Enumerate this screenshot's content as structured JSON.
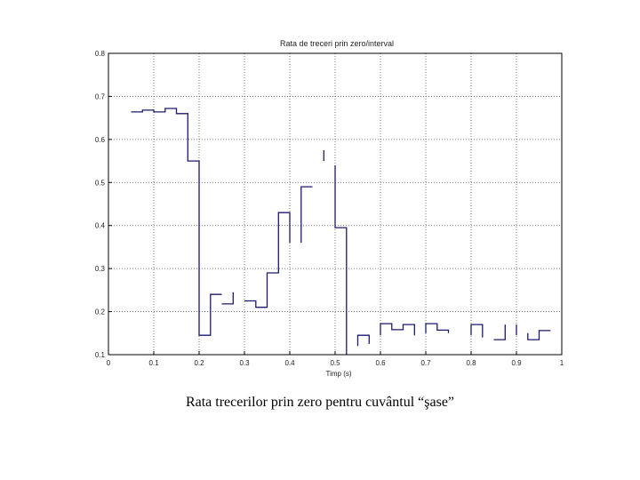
{
  "caption": "Rata trecerilor prin zero pentru cuvântul “şase”",
  "chart_data": {
    "type": "line",
    "title": "Rata de treceri prin zero/interval",
    "xlabel": "Timp (s)",
    "ylabel": "",
    "xlim": [
      0,
      1
    ],
    "ylim": [
      0.1,
      0.8
    ],
    "xticks": [
      0,
      0.1,
      0.2,
      0.3,
      0.4,
      0.5,
      0.6,
      0.7,
      0.8,
      0.9,
      1
    ],
    "xtick_labels": [
      "0",
      "0.1",
      "0.2",
      "0.3",
      "0.4",
      "0.5",
      "0.6",
      "0.7",
      "0.8",
      "0.9",
      "1"
    ],
    "yticks": [
      0.1,
      0.2,
      0.3,
      0.4,
      0.5,
      0.6,
      0.7,
      0.8
    ],
    "ytick_labels": [
      "0.1",
      "0.2",
      "0.3",
      "0.4",
      "0.5",
      "0.6",
      "0.7",
      "0.8"
    ],
    "grid": true,
    "line_color": "#1a1a6e",
    "step_segments": [
      {
        "x": [
          0.05,
          0.075,
          0.075,
          0.1,
          0.1,
          0.125,
          0.125,
          0.15,
          0.15,
          0.175,
          0.175,
          0.2,
          0.2,
          0.225,
          0.225,
          0.25
        ],
        "y": [
          0.664,
          0.664,
          0.668,
          0.668,
          0.664,
          0.664,
          0.672,
          0.672,
          0.66,
          0.66,
          0.55,
          0.55,
          0.145,
          0.145,
          0.24,
          0.24
        ]
      },
      {
        "x": [
          0.25,
          0.275,
          0.275
        ],
        "y": [
          0.218,
          0.218,
          0.245
        ]
      },
      {
        "x": [
          0.3,
          0.325,
          0.325,
          0.35,
          0.35,
          0.375,
          0.375,
          0.4,
          0.4
        ],
        "y": [
          0.225,
          0.225,
          0.21,
          0.21,
          0.29,
          0.29,
          0.43,
          0.43,
          0.36
        ]
      },
      {
        "x": [
          0.425,
          0.425,
          0.45
        ],
        "y": [
          0.36,
          0.49,
          0.49
        ]
      },
      {
        "x": [
          0.475,
          0.475
        ],
        "y": [
          0.575,
          0.55
        ]
      },
      {
        "x": [
          0.5,
          0.5,
          0.525,
          0.525
        ],
        "y": [
          0.54,
          0.395,
          0.395,
          0.1
        ]
      },
      {
        "x": [
          0.55,
          0.55,
          0.575,
          0.575
        ],
        "y": [
          0.12,
          0.145,
          0.145,
          0.125
        ]
      },
      {
        "x": [
          0.6,
          0.6,
          0.625,
          0.625,
          0.65,
          0.65,
          0.675,
          0.675
        ],
        "y": [
          0.145,
          0.172,
          0.172,
          0.158,
          0.158,
          0.17,
          0.17,
          0.145
        ]
      },
      {
        "x": [
          0.7,
          0.7,
          0.725,
          0.725,
          0.75,
          0.75
        ],
        "y": [
          0.15,
          0.172,
          0.172,
          0.157,
          0.157,
          0.15
        ]
      },
      {
        "x": [
          0.8,
          0.8,
          0.825,
          0.825
        ],
        "y": [
          0.145,
          0.17,
          0.17,
          0.14
        ]
      },
      {
        "x": [
          0.85,
          0.875,
          0.875
        ],
        "y": [
          0.135,
          0.135,
          0.17
        ]
      },
      {
        "x": [
          0.9,
          0.9
        ],
        "y": [
          0.145,
          0.17
        ]
      },
      {
        "x": [
          0.925,
          0.925,
          0.95,
          0.95,
          0.975
        ],
        "y": [
          0.15,
          0.135,
          0.135,
          0.156,
          0.156
        ]
      }
    ]
  }
}
